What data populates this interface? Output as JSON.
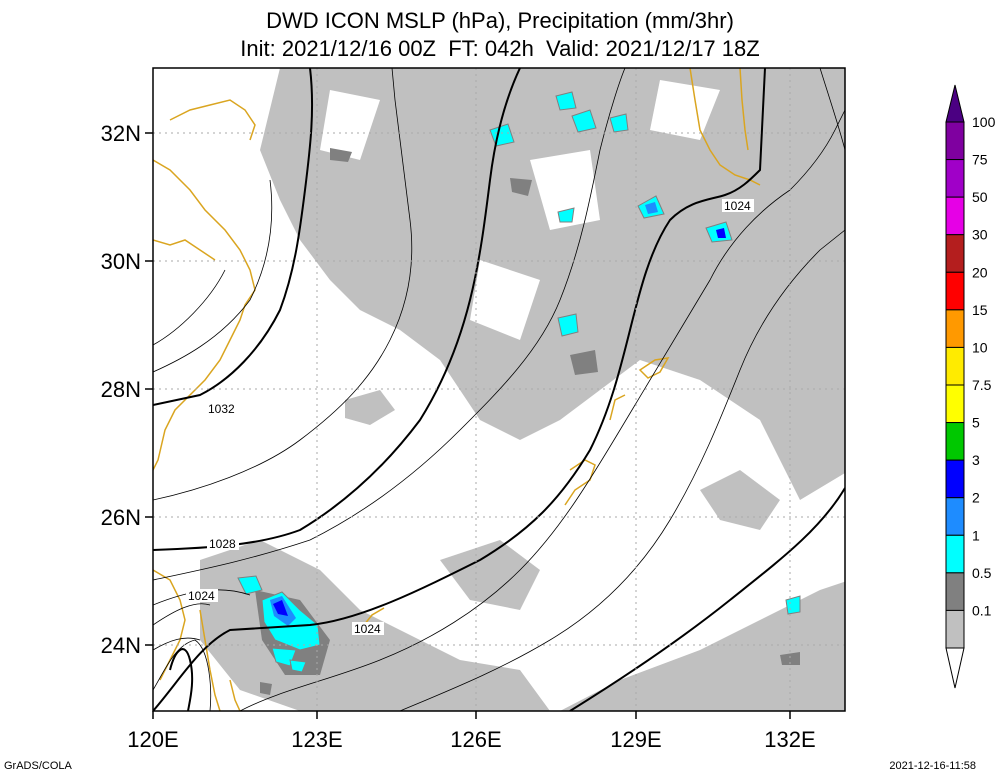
{
  "title": {
    "line1": "DWD ICON MSLP (hPa), Precipitation (mm/3hr)",
    "line2": "Init: 2021/12/16 00Z  FT: 042h  Valid: 2021/12/17 18Z"
  },
  "axes": {
    "lon_labels": [
      "120E",
      "123E",
      "126E",
      "129E",
      "132E"
    ],
    "lat_labels": [
      "24N",
      "26N",
      "28N",
      "30N",
      "32N"
    ]
  },
  "isobar_labels": [
    "1032",
    "1028",
    "1024",
    "1024",
    "1024"
  ],
  "colorbar": {
    "labels": [
      "100",
      "75",
      "50",
      "30",
      "20",
      "15",
      "10",
      "7.5",
      "5",
      "3",
      "2",
      "1",
      "0.5",
      "0.1"
    ],
    "colors": [
      "#7f00a0",
      "#a000c8",
      "#e600e6",
      "#b41e1e",
      "#ff0000",
      "#ff9900",
      "#ffeb00",
      "#ffff00",
      "#00c800",
      "#0000ff",
      "#1e8cff",
      "#00ffff",
      "#808080",
      "#c0c0c0"
    ]
  },
  "footer": {
    "left": "GrADS/COLA",
    "right": "2021-12-16-11:58"
  }
}
